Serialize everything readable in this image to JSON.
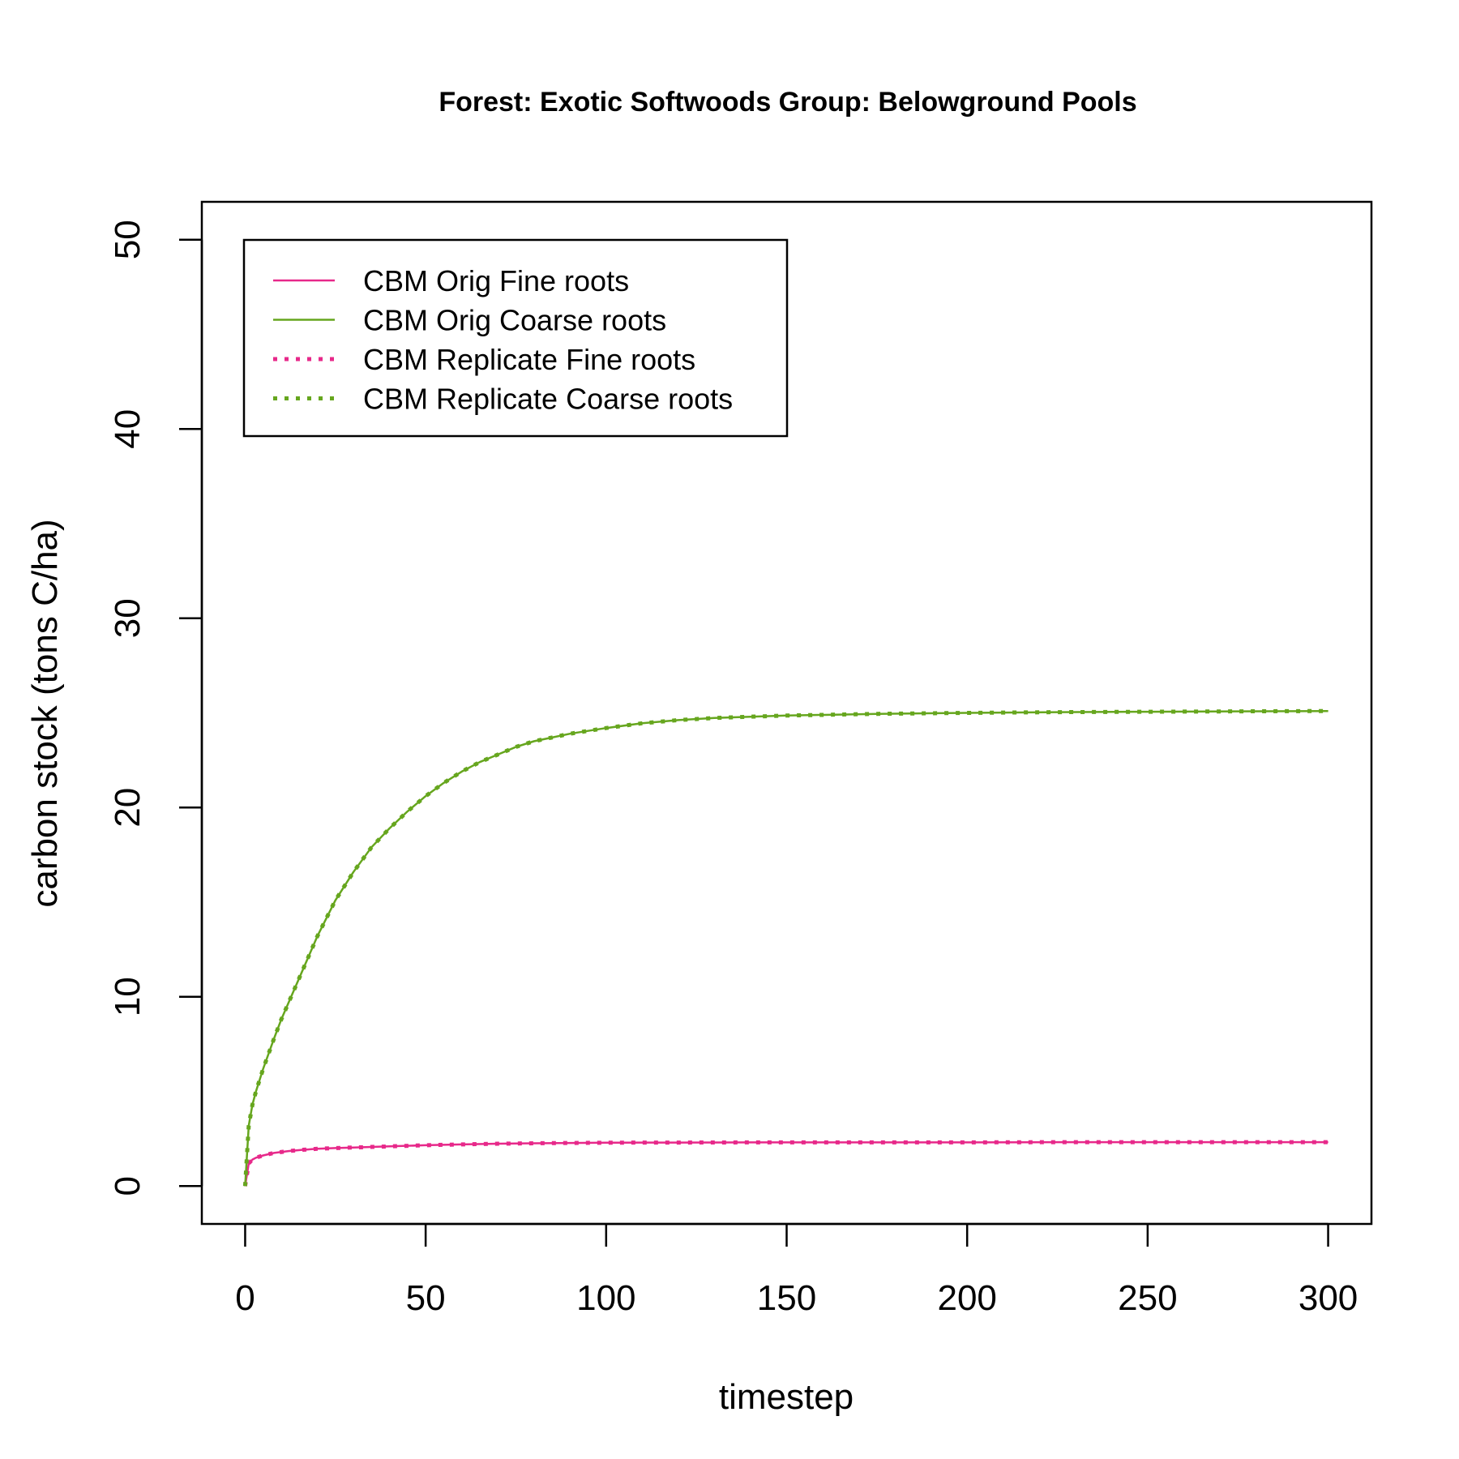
{
  "chart_data": {
    "type": "line",
    "title": "Forest: Exotic Softwoods Group: Belowground Pools",
    "xlabel": "timestep",
    "ylabel": "carbon stock (tons C/ha)",
    "xlim": [
      -12,
      312
    ],
    "ylim": [
      -2,
      52
    ],
    "xticks": [
      0,
      50,
      100,
      150,
      200,
      250,
      300
    ],
    "yticks": [
      0,
      10,
      20,
      30,
      40,
      50
    ],
    "grid": false,
    "legend_position": "top-left",
    "series": [
      {
        "name": "CBM Orig Fine roots",
        "color": "#e7298a",
        "style": "solid",
        "x": [
          0,
          1,
          2,
          3,
          5,
          8,
          12,
          16,
          20,
          25,
          30,
          40,
          50,
          60,
          70,
          80,
          90,
          100,
          110,
          120,
          140,
          160,
          180,
          200,
          225,
          250,
          275,
          300
        ],
        "y": [
          0,
          1.2,
          1.4,
          1.5,
          1.62,
          1.75,
          1.85,
          1.92,
          1.97,
          2.01,
          2.04,
          2.1,
          2.16,
          2.2,
          2.24,
          2.26,
          2.28,
          2.29,
          2.3,
          2.3,
          2.31,
          2.31,
          2.31,
          2.31,
          2.32,
          2.32,
          2.32,
          2.32
        ]
      },
      {
        "name": "CBM Orig Coarse roots",
        "color": "#66a61e",
        "style": "solid",
        "x": [
          0,
          1,
          2,
          3,
          5,
          8,
          10,
          15,
          20,
          25,
          30,
          35,
          40,
          45,
          50,
          55,
          60,
          65,
          70,
          75,
          80,
          85,
          90,
          95,
          100,
          110,
          120,
          130,
          140,
          150,
          175,
          200,
          225,
          250,
          275,
          300
        ],
        "y": [
          0,
          3.2,
          4.3,
          5.0,
          6.2,
          7.8,
          8.8,
          11.0,
          13.2,
          15.1,
          16.6,
          17.9,
          18.9,
          19.8,
          20.6,
          21.3,
          21.9,
          22.4,
          22.8,
          23.2,
          23.5,
          23.7,
          23.9,
          24.05,
          24.2,
          24.45,
          24.62,
          24.73,
          24.8,
          24.86,
          24.95,
          25.0,
          25.04,
          25.06,
          25.08,
          25.1
        ]
      },
      {
        "name": "CBM Replicate Fine roots",
        "color": "#e7298a",
        "style": "dotted",
        "x": [
          0,
          1,
          2,
          3,
          5,
          8,
          12,
          16,
          20,
          25,
          30,
          40,
          50,
          60,
          70,
          80,
          90,
          100,
          110,
          120,
          140,
          160,
          180,
          200,
          225,
          250,
          275,
          300
        ],
        "y": [
          0,
          1.2,
          1.4,
          1.5,
          1.62,
          1.75,
          1.85,
          1.92,
          1.97,
          2.01,
          2.04,
          2.1,
          2.16,
          2.2,
          2.24,
          2.26,
          2.28,
          2.29,
          2.3,
          2.3,
          2.31,
          2.31,
          2.31,
          2.31,
          2.32,
          2.32,
          2.32,
          2.32
        ]
      },
      {
        "name": "CBM Replicate Coarse roots",
        "color": "#66a61e",
        "style": "dotted",
        "x": [
          0,
          1,
          2,
          3,
          5,
          8,
          10,
          15,
          20,
          25,
          30,
          35,
          40,
          45,
          50,
          55,
          60,
          65,
          70,
          75,
          80,
          85,
          90,
          95,
          100,
          110,
          120,
          130,
          140,
          150,
          175,
          200,
          225,
          250,
          275,
          300
        ],
        "y": [
          0,
          3.2,
          4.3,
          5.0,
          6.2,
          7.8,
          8.8,
          11.0,
          13.2,
          15.1,
          16.6,
          17.9,
          18.9,
          19.8,
          20.6,
          21.3,
          21.9,
          22.4,
          22.8,
          23.2,
          23.5,
          23.7,
          23.9,
          24.05,
          24.2,
          24.45,
          24.62,
          24.73,
          24.8,
          24.86,
          24.95,
          25.0,
          25.04,
          25.06,
          25.08,
          25.1
        ]
      }
    ]
  }
}
